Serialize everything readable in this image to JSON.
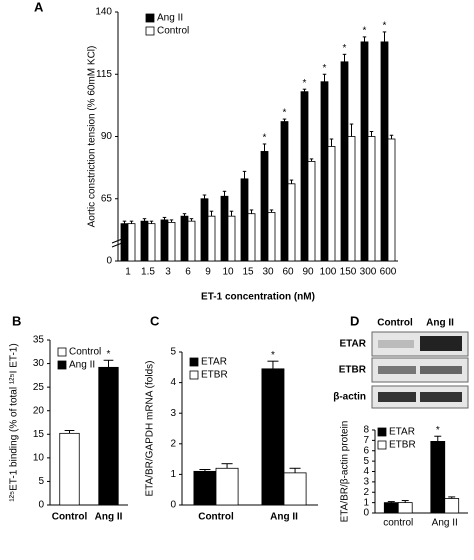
{
  "chart_data": [
    {
      "type": "bar",
      "panel": "A",
      "ylabel": "Aortic constriction tension (% 60mM KCl)",
      "xlabel": "ET-1 concentration (nM)",
      "categories": [
        "1",
        "1.5",
        "3",
        "6",
        "9",
        "10",
        "15",
        "30",
        "60",
        "90",
        "100",
        "150",
        "300",
        "600"
      ],
      "series": [
        {
          "name": "Ang II",
          "color": "#000000",
          "values": [
            55,
            56,
            56.5,
            58,
            65,
            66,
            73,
            84,
            96,
            108,
            112,
            120,
            128,
            128
          ],
          "errors": [
            1,
            1,
            1,
            1,
            1.5,
            2,
            3,
            3,
            1,
            1,
            3,
            3,
            2,
            4
          ]
        },
        {
          "name": "Control",
          "color": "#ffffff",
          "values": [
            55,
            55,
            55.5,
            56,
            58,
            58,
            59,
            59.5,
            71,
            80,
            86,
            90,
            90,
            89
          ],
          "errors": [
            1,
            1,
            1,
            1,
            2,
            2,
            1.5,
            1,
            1.5,
            1,
            3,
            5,
            2,
            1.5
          ]
        }
      ],
      "markers": [
        null,
        null,
        null,
        null,
        null,
        null,
        null,
        "*",
        "*",
        "*",
        "*",
        "*",
        "*",
        "*"
      ],
      "ylim": [
        0,
        140
      ],
      "axis_break": [
        0,
        40
      ],
      "yticks": [
        0,
        65,
        90,
        115,
        140
      ]
    },
    {
      "type": "bar",
      "panel": "B",
      "ylabel": "¹²⁵ET-1 binding (% of total ¹²⁵I ET-1)",
      "categories": [
        "Control",
        "Ang II"
      ],
      "series": [
        {
          "name": "Control",
          "color": "#ffffff",
          "values": [
            15.2,
            null
          ],
          "errors": [
            0.6,
            null
          ]
        },
        {
          "name": "Ang II",
          "color": "#000000",
          "values": [
            null,
            29.2
          ],
          "errors": [
            null,
            1.5
          ]
        }
      ],
      "markers": [
        null,
        "*"
      ],
      "ylim": [
        0,
        35
      ],
      "yticks": [
        0,
        5,
        10,
        15,
        20,
        25,
        30,
        35
      ]
    },
    {
      "type": "bar",
      "panel": "C",
      "ylabel": "ETA/BR/GAPDH mRNA (folds)",
      "categories": [
        "Control",
        "Ang II"
      ],
      "series": [
        {
          "name": "ETAR",
          "color": "#000000",
          "values": [
            1.1,
            4.45
          ],
          "errors": [
            0.06,
            0.25
          ]
        },
        {
          "name": "ETBR",
          "color": "#ffffff",
          "values": [
            1.2,
            1.05
          ],
          "errors": [
            0.15,
            0.15
          ]
        }
      ],
      "markers": [
        null,
        "*"
      ],
      "ylim": [
        0,
        5
      ],
      "yticks": [
        0,
        1,
        2,
        3,
        4,
        5
      ]
    },
    {
      "type": "bar",
      "panel": "D",
      "ylabel": "ETA/BR/β-actin protein",
      "categories": [
        "control",
        "Ang II"
      ],
      "series": [
        {
          "name": "ETAR",
          "color": "#000000",
          "values": [
            1,
            6.9
          ],
          "errors": [
            0.1,
            0.5
          ]
        },
        {
          "name": "ETBR",
          "color": "#ffffff",
          "values": [
            1,
            1.4
          ],
          "errors": [
            0.2,
            0.15
          ]
        }
      ],
      "markers": [
        null,
        "*"
      ],
      "ylim": [
        0,
        8
      ],
      "yticks": [
        0,
        1,
        2,
        3,
        4,
        5,
        6,
        7,
        8
      ]
    }
  ],
  "blot": {
    "columns": [
      "Control",
      "Ang II"
    ],
    "rows": [
      "ETAR",
      "ETBR",
      "β-actin"
    ]
  }
}
